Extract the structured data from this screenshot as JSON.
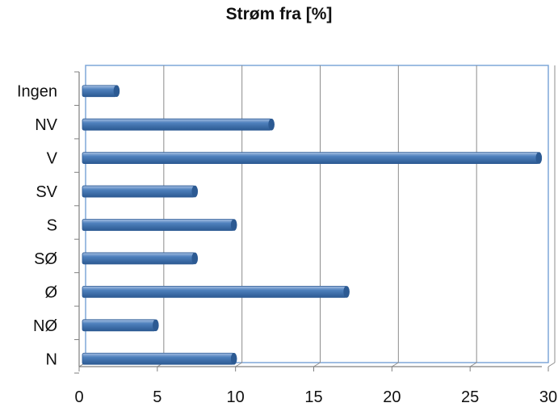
{
  "chart_data": {
    "type": "bar",
    "orientation": "horizontal",
    "title": "Strøm fra [%]",
    "xlabel": "",
    "ylabel": "",
    "categories": [
      "Ingen",
      "NV",
      "V",
      "SV",
      "S",
      "SØ",
      "Ø",
      "NØ",
      "N"
    ],
    "values": [
      2.5,
      12.4,
      29.5,
      7.5,
      10.0,
      7.5,
      17.2,
      5.0,
      10.0
    ],
    "xlim": [
      0,
      30
    ],
    "xticks": [
      "0",
      "5",
      "10",
      "15",
      "20",
      "25",
      "30"
    ],
    "grid": true,
    "legend": "none",
    "colors": {
      "bar": "#4f81bd",
      "bar_light": "#a7c0e3",
      "bar_dark": "#2c5a93",
      "grid": "#8c8c8c",
      "plot_border": "#7fa7d9",
      "axis": "#808080"
    }
  }
}
